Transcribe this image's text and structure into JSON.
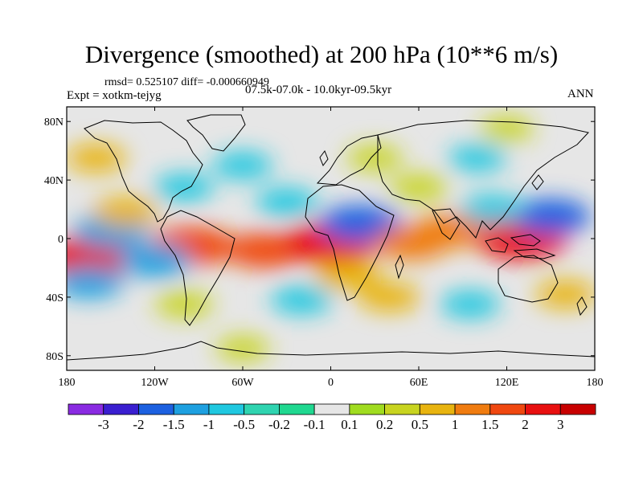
{
  "title": "Divergence (smoothed) at 200 hPa (10**6 m/s)",
  "stats": "rmsd= 0.525107 diff= -0.000660949",
  "experiment": "Expt = xotkm-tejyg",
  "period": "07.5k-07.0k - 10.0kyr-09.5kyr",
  "season": "ANN",
  "map": {
    "projection": "cylindrical-equidistant",
    "lon_range": [
      -180,
      180
    ],
    "lat_range": [
      -90,
      90
    ],
    "x_ticks": [
      {
        "lon": -180,
        "label": "180"
      },
      {
        "lon": -120,
        "label": "120W"
      },
      {
        "lon": -60,
        "label": "60W"
      },
      {
        "lon": 0,
        "label": "0"
      },
      {
        "lon": 60,
        "label": "60E"
      },
      {
        "lon": 120,
        "label": "120E"
      },
      {
        "lon": 180,
        "label": "180"
      }
    ],
    "y_ticks": [
      {
        "lat": 80,
        "label": "80N"
      },
      {
        "lat": 40,
        "label": "40N"
      },
      {
        "lat": 0,
        "label": "0"
      },
      {
        "lat": -40,
        "label": "40S"
      },
      {
        "lat": -80,
        "label": "80S"
      }
    ],
    "background_color": "#e6e6e6",
    "features": [
      {
        "lon": -165,
        "lat": -13,
        "value": 2.4
      },
      {
        "lon": -95,
        "lat": -5,
        "value": 2.0
      },
      {
        "lon": -150,
        "lat": 5,
        "value": -1.4
      },
      {
        "lon": -120,
        "lat": -15,
        "value": -1.3
      },
      {
        "lon": -140,
        "lat": 18,
        "value": 0.9
      },
      {
        "lon": -45,
        "lat": -8,
        "value": 1.6
      },
      {
        "lon": 0,
        "lat": -3,
        "value": 2.5
      },
      {
        "lon": 20,
        "lat": 10,
        "value": -1.8
      },
      {
        "lon": 12,
        "lat": -25,
        "value": 0.9
      },
      {
        "lon": 55,
        "lat": -3,
        "value": 1.4
      },
      {
        "lon": 80,
        "lat": 5,
        "value": 1.3
      },
      {
        "lon": 130,
        "lat": 0,
        "value": 2.3
      },
      {
        "lon": 150,
        "lat": 15,
        "value": -1.6
      },
      {
        "lon": 110,
        "lat": 20,
        "value": -0.8
      },
      {
        "lon": 40,
        "lat": -40,
        "value": 0.7
      },
      {
        "lon": -20,
        "lat": -42,
        "value": -0.7
      },
      {
        "lon": -165,
        "lat": -30,
        "value": -1.1
      },
      {
        "lon": 160,
        "lat": -38,
        "value": 0.6
      },
      {
        "lon": -160,
        "lat": 55,
        "value": 0.6
      },
      {
        "lon": -60,
        "lat": 50,
        "value": -0.6
      },
      {
        "lon": 30,
        "lat": 55,
        "value": 0.4
      },
      {
        "lon": 100,
        "lat": 55,
        "value": -0.5
      },
      {
        "lon": -100,
        "lat": 35,
        "value": -0.6
      },
      {
        "lon": 60,
        "lat": 35,
        "value": 0.5
      },
      {
        "lon": -30,
        "lat": 25,
        "value": -0.7
      },
      {
        "lon": -100,
        "lat": -45,
        "value": 0.5
      },
      {
        "lon": 95,
        "lat": -45,
        "value": -0.6
      },
      {
        "lon": -60,
        "lat": -75,
        "value": 0.3
      },
      {
        "lon": 120,
        "lat": 75,
        "value": 0.3
      }
    ]
  },
  "colorbar": {
    "labels": [
      "-3",
      "-2",
      "-1.5",
      "-1",
      "-0.5",
      "-0.2",
      "-0.1",
      "0.1",
      "0.2",
      "0.5",
      "1",
      "1.5",
      "2",
      "3"
    ],
    "colors": [
      "#8a2be2",
      "#3a1fd0",
      "#1c60e0",
      "#1ea0e0",
      "#20c8e0",
      "#2fd4b0",
      "#20d890",
      "#e6e6e6",
      "#a0dc20",
      "#c8d420",
      "#e8b410",
      "#f07c10",
      "#f04810",
      "#e81010",
      "#c80000"
    ]
  }
}
